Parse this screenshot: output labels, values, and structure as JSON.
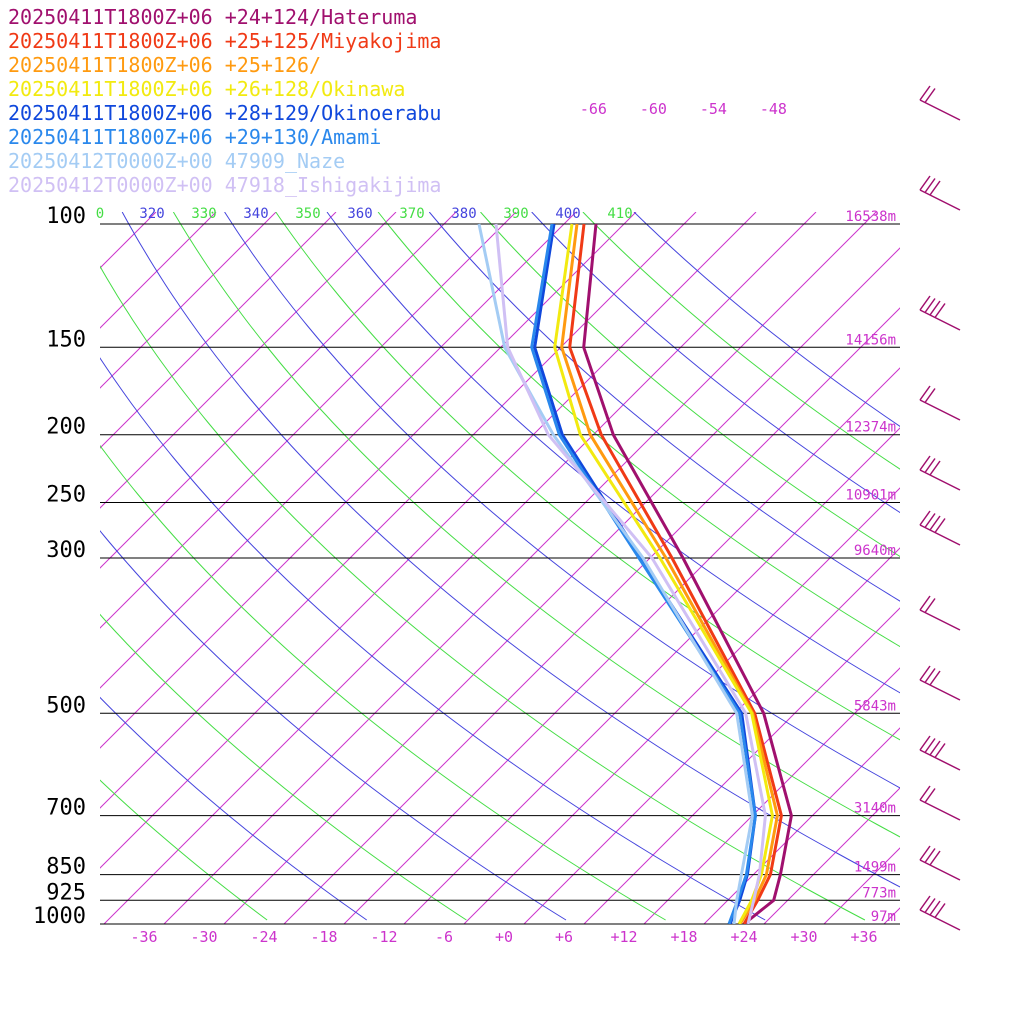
{
  "chart_data": {
    "type": "skew-t",
    "legend": [
      {
        "label": "20250411T1800Z+06 +24+124/Hateruma",
        "color": "#a0106e"
      },
      {
        "label": "20250411T1800Z+06 +25+125/Miyakojima",
        "color": "#f03a16"
      },
      {
        "label": "20250411T1800Z+06 +25+126/",
        "color": "#ff9a10"
      },
      {
        "label": "20250411T1800Z+06 +26+128/Okinawa",
        "color": "#f2ea10"
      },
      {
        "label": "20250411T1800Z+06 +28+129/Okinoerabu",
        "color": "#1048dc"
      },
      {
        "label": "20250411T1800Z+06 +29+130/Amami",
        "color": "#2a88ec"
      },
      {
        "label": "20250412T0000Z+00 47909_Naze",
        "color": "#a4ccf4"
      },
      {
        "label": "20250412T0000Z+00 47918_Ishigakijima",
        "color": "#d0c0f4"
      }
    ],
    "pressure_levels": [
      {
        "p": 100,
        "label": "100",
        "height": "16538m"
      },
      {
        "p": 150,
        "label": "150",
        "height": "14156m"
      },
      {
        "p": 200,
        "label": "200",
        "height": "12374m"
      },
      {
        "p": 250,
        "label": "250",
        "height": "10901m"
      },
      {
        "p": 300,
        "label": "300",
        "height": "9640m"
      },
      {
        "p": 500,
        "label": "500",
        "height": "5843m"
      },
      {
        "p": 700,
        "label": "700",
        "height": "3140m"
      },
      {
        "p": 850,
        "label": "850",
        "height": "1499m"
      },
      {
        "p": 925,
        "label": "925",
        "height": "773m"
      },
      {
        "p": 1000,
        "label": "1000",
        "height": "97m"
      }
    ],
    "x_ticks": [
      "-36",
      "-30",
      "-24",
      "-18",
      "-12",
      "-6",
      "+0",
      "+6",
      "+12",
      "+18",
      "+24",
      "+30",
      "+36"
    ],
    "isotherm_labels_top": [
      "-66",
      "-60",
      "-54",
      "-48"
    ],
    "theta_labels": [
      {
        "label": "0",
        "color": "#44dd44"
      },
      {
        "label": "320",
        "color": "#4444dd"
      },
      {
        "label": "330",
        "color": "#44dd44"
      },
      {
        "label": "340",
        "color": "#4444dd"
      },
      {
        "label": "350",
        "color": "#44dd44"
      },
      {
        "label": "360",
        "color": "#4444dd"
      },
      {
        "label": "370",
        "color": "#44dd44"
      },
      {
        "label": "380",
        "color": "#4444dd"
      },
      {
        "label": "390",
        "color": "#44dd44"
      },
      {
        "label": "400",
        "color": "#4444dd"
      },
      {
        "label": "410",
        "color": "#44dd44"
      }
    ],
    "temperature_axis": {
      "unit": "degC",
      "range": [
        -39,
        40
      ]
    },
    "pressure_axis": {
      "unit": "hPa",
      "range": [
        100,
        1000
      ],
      "scale": "log"
    },
    "series": [
      {
        "name": "20250411T1800Z+06 +24+124/Hateruma",
        "color": "#a0106e",
        "points": [
          [
            1000,
            24
          ],
          [
            925,
            24.6
          ],
          [
            850,
            22.7
          ],
          [
            700,
            17.9
          ],
          [
            500,
            4.9
          ],
          [
            300,
            -18.7
          ],
          [
            200,
            -38
          ],
          [
            150,
            -49.7
          ],
          [
            100,
            -60.8
          ]
        ]
      },
      {
        "name": "20250411T1800Z+06 +25+125/Miyakojima",
        "color": "#f03a16",
        "points": [
          [
            1000,
            24
          ],
          [
            925,
            23
          ],
          [
            850,
            21.7
          ],
          [
            700,
            16.9
          ],
          [
            500,
            4
          ],
          [
            300,
            -19.8
          ],
          [
            200,
            -39.2
          ],
          [
            150,
            -51.1
          ],
          [
            100,
            -62
          ]
        ]
      },
      {
        "name": "20250411T1800Z+06 +25+126/",
        "color": "#ff9a10",
        "points": [
          [
            1000,
            23.6
          ],
          [
            925,
            22.7
          ],
          [
            850,
            21.3
          ],
          [
            700,
            16.5
          ],
          [
            500,
            3.8
          ],
          [
            300,
            -20.4
          ],
          [
            200,
            -40.3
          ],
          [
            150,
            -51.9
          ],
          [
            100,
            -62.7
          ]
        ]
      },
      {
        "name": "20250411T1800Z+06 +26+128/Okinawa",
        "color": "#f2ea10",
        "points": [
          [
            1000,
            23.5
          ],
          [
            925,
            22.4
          ],
          [
            850,
            20.8
          ],
          [
            700,
            16
          ],
          [
            500,
            3.7
          ],
          [
            300,
            -21
          ],
          [
            200,
            -41.3
          ],
          [
            150,
            -52.6
          ],
          [
            100,
            -63.2
          ]
        ]
      },
      {
        "name": "20250411T1800Z+06 +28+129/Okinoerabu",
        "color": "#1048dc",
        "points": [
          [
            1000,
            22.6
          ],
          [
            925,
            21.2
          ],
          [
            850,
            19.4
          ],
          [
            700,
            14.3
          ],
          [
            500,
            2.7
          ],
          [
            300,
            -22.9
          ],
          [
            200,
            -43.1
          ],
          [
            150,
            -54.6
          ],
          [
            100,
            -65
          ]
        ]
      },
      {
        "name": "20250411T1800Z+06 +29+130/Amami",
        "color": "#2a88ec",
        "points": [
          [
            1000,
            22.5
          ],
          [
            925,
            21
          ],
          [
            850,
            19.3
          ],
          [
            700,
            14.3
          ],
          [
            500,
            2.5
          ],
          [
            300,
            -23.1
          ],
          [
            200,
            -43.4
          ],
          [
            150,
            -54.9
          ],
          [
            100,
            -65.2
          ]
        ]
      },
      {
        "name": "20250412T0000Z+00 47909_Naze",
        "color": "#a4ccf4",
        "points": [
          [
            1000,
            23
          ],
          [
            925,
            20.9
          ],
          [
            850,
            18.8
          ],
          [
            700,
            14
          ],
          [
            500,
            2.2
          ],
          [
            300,
            -22.7
          ],
          [
            200,
            -44
          ],
          [
            150,
            -57.6
          ],
          [
            100,
            -72.5
          ]
        ]
      },
      {
        "name": "20250412T0000Z+00 47918_Ishigakijima",
        "color": "#d0c0f4",
        "points": [
          [
            1000,
            24.4
          ],
          [
            925,
            22.6
          ],
          [
            850,
            20.6
          ],
          [
            700,
            15.3
          ],
          [
            500,
            3.1
          ],
          [
            300,
            -21.8
          ],
          [
            200,
            -44.5
          ],
          [
            150,
            -57.3
          ],
          [
            100,
            -70.8
          ]
        ]
      }
    ],
    "grid": true
  }
}
